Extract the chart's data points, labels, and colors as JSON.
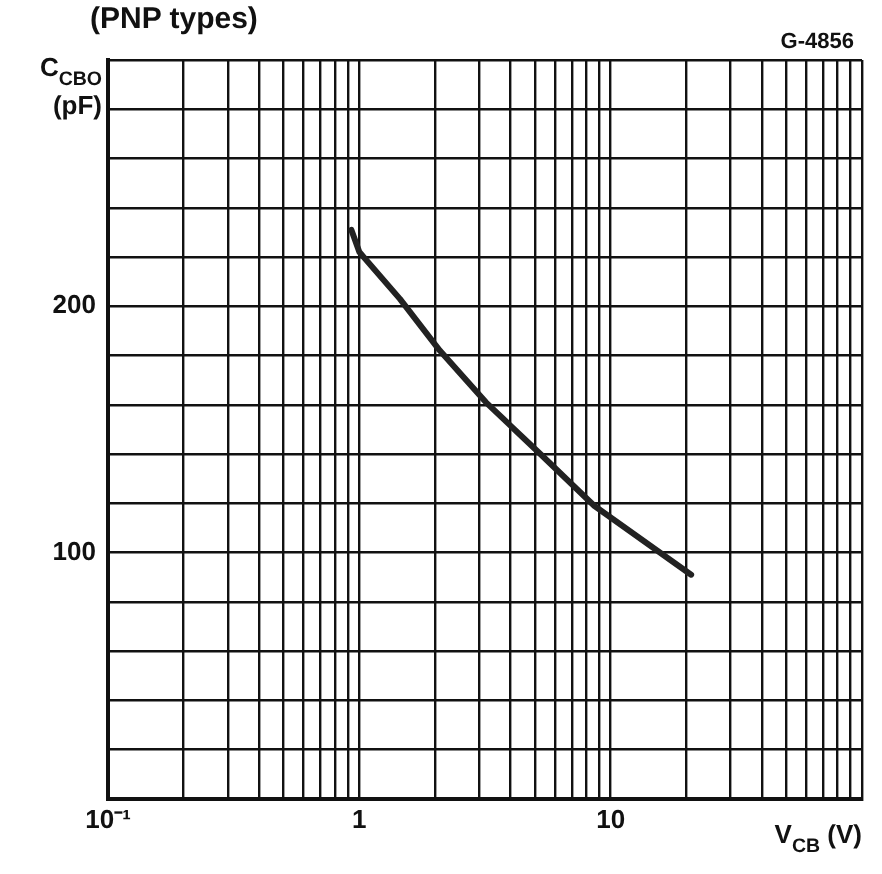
{
  "chart_data": {
    "type": "line",
    "title": "(PNP types)",
    "annotations": [
      "G-4856"
    ],
    "ylabel": "C$_{CBO}$ (pF)",
    "xlabel": "V$_{CB}$ (V)",
    "log": "x",
    "grid": true,
    "marker": "none",
    "line_style": "solid",
    "x": [
      0.93,
      1,
      1.45,
      2.09,
      3.19,
      5.25,
      8.6,
      20.9
    ],
    "series": [
      {
        "color": "#222222",
        "values": [
          231,
          222,
          203,
          182,
          161,
          140,
          119,
          91
        ]
      }
    ],
    "xlim": [
      0.1,
      100
    ],
    "xticks": [
      {
        "value": 0.1,
        "label": "10⁻¹"
      },
      {
        "value": 0.2,
        "label": null
      },
      {
        "value": 0.3,
        "label": null
      },
      {
        "value": 0.4,
        "label": null
      },
      {
        "value": 0.5,
        "label": null
      },
      {
        "value": 0.6,
        "label": null
      },
      {
        "value": 0.7,
        "label": null
      },
      {
        "value": 0.8,
        "label": null
      },
      {
        "value": 0.9,
        "label": null
      },
      1,
      {
        "value": 2,
        "label": null
      },
      {
        "value": 3,
        "label": null
      },
      {
        "value": 4,
        "label": null
      },
      {
        "value": 5,
        "label": null
      },
      {
        "value": 6,
        "label": null
      },
      {
        "value": 7,
        "label": null
      },
      {
        "value": 8,
        "label": null
      },
      {
        "value": 9,
        "label": null
      },
      10,
      {
        "value": 20,
        "label": null
      },
      {
        "value": 30,
        "label": null
      },
      {
        "value": 40,
        "label": null
      },
      {
        "value": 50,
        "label": null
      },
      {
        "value": 60,
        "label": null
      },
      {
        "value": 70,
        "label": null
      },
      {
        "value": 80,
        "label": null
      },
      {
        "value": 90,
        "label": null
      },
      {
        "value": 100,
        "label": null
      }
    ],
    "ylim": [
      0,
      300
    ],
    "yticks": [
      {
        "value": 0,
        "label": null
      },
      {
        "value": 20,
        "label": null
      },
      {
        "value": 40,
        "label": null
      },
      {
        "value": 60,
        "label": null
      },
      {
        "value": 80,
        "label": null
      },
      100,
      {
        "value": 120,
        "label": null
      },
      {
        "value": 140,
        "label": null
      },
      {
        "value": 160,
        "label": null
      },
      {
        "value": 180,
        "label": null
      },
      200,
      {
        "value": 220,
        "label": null
      },
      {
        "value": 240,
        "label": null
      },
      {
        "value": 260,
        "label": null
      },
      {
        "value": 280,
        "label": null
      },
      {
        "value": 300,
        "label": null
      }
    ]
  }
}
